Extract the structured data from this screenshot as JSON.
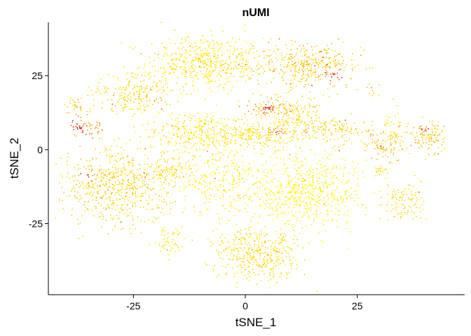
{
  "chart_data": {
    "type": "scatter",
    "title": "nUMI",
    "xlabel": "tSNE_1",
    "ylabel": "tSNE_2",
    "xlim": [
      -44,
      49
    ],
    "ylim": [
      -49,
      43
    ],
    "xticks": [
      -25,
      0,
      25
    ],
    "yticks": [
      -25,
      0,
      25
    ],
    "xtick_labels": [
      "-25",
      "0",
      "25"
    ],
    "ytick_labels": [
      "-25",
      "0",
      "25"
    ],
    "grid": false,
    "legend": "none",
    "color_scale": {
      "low": "#FFFF00",
      "mid": "#FFC800",
      "high": "#E60000"
    },
    "clusters": [
      {
        "x": -9,
        "y": 29.5,
        "sx": 6.5,
        "sy": 4.5,
        "n": 520,
        "base": 0.25,
        "hot": []
      },
      {
        "x": 14,
        "y": 28.5,
        "sx": 6,
        "sy": 4,
        "n": 380,
        "base": 0.45,
        "hot": [
          {
            "x": 20,
            "y": 25,
            "r": 4
          }
        ]
      },
      {
        "x": -25,
        "y": 19,
        "sx": 4.5,
        "sy": 3.5,
        "n": 220,
        "base": 0.35,
        "hot": [
          {
            "x": -20,
            "y": 18,
            "r": 2.5
          }
        ]
      },
      {
        "x": -37.5,
        "y": 14.5,
        "sx": 1.3,
        "sy": 1.2,
        "n": 30,
        "base": 0.45,
        "hot": []
      },
      {
        "x": -35.5,
        "y": 7.5,
        "sx": 2,
        "sy": 1.5,
        "n": 55,
        "base": 0.7,
        "hot": [
          {
            "x": -37,
            "y": 7,
            "r": 1.5
          }
        ]
      },
      {
        "x": -11,
        "y": 6,
        "sx": 6,
        "sy": 3.5,
        "n": 300,
        "base": 0.22,
        "hot": []
      },
      {
        "x": 4,
        "y": 5,
        "sx": 6,
        "sy": 2.5,
        "n": 260,
        "base": 0.3,
        "hot": [
          {
            "x": 7,
            "y": 6,
            "r": 2.5
          }
        ]
      },
      {
        "x": 6,
        "y": 14,
        "sx": 3.5,
        "sy": 1.8,
        "n": 100,
        "base": 0.5,
        "hot": [
          {
            "x": 5,
            "y": 14,
            "r": 2
          }
        ]
      },
      {
        "x": 12,
        "y": 10,
        "sx": 3,
        "sy": 3,
        "n": 140,
        "base": 0.35,
        "hot": [
          {
            "x": 14,
            "y": 6,
            "r": 2
          }
        ]
      },
      {
        "x": 21,
        "y": 7,
        "sx": 3,
        "sy": 2,
        "n": 90,
        "base": 0.4,
        "hot": [
          {
            "x": 22,
            "y": 10,
            "r": 1.5
          }
        ]
      },
      {
        "x": 31,
        "y": 2,
        "sx": 3,
        "sy": 2.5,
        "n": 100,
        "base": 0.5,
        "hot": []
      },
      {
        "x": 41,
        "y": 4.5,
        "sx": 2,
        "sy": 2.5,
        "n": 110,
        "base": 0.45,
        "hot": [
          {
            "x": 40,
            "y": 7,
            "r": 1.5
          }
        ]
      },
      {
        "x": -28,
        "y": -12,
        "sx": 6.5,
        "sy": 6.5,
        "n": 620,
        "base": 0.4,
        "hot": [
          {
            "x": -36,
            "y": -9,
            "r": 3
          }
        ]
      },
      {
        "x": -17,
        "y": -7,
        "sx": 2,
        "sy": 2,
        "n": 70,
        "base": 0.3,
        "hot": []
      },
      {
        "x": -6,
        "y": -10,
        "sx": 5,
        "sy": 6,
        "n": 260,
        "base": 0.15,
        "hot": []
      },
      {
        "x": 13,
        "y": -14,
        "sx": 6.5,
        "sy": 6,
        "n": 620,
        "base": 0.08,
        "hot": []
      },
      {
        "x": 30,
        "y": -7,
        "sx": 1,
        "sy": 0.8,
        "n": 20,
        "base": 0.3,
        "hot": []
      },
      {
        "x": 35.5,
        "y": -17,
        "sx": 2.5,
        "sy": 3.5,
        "n": 110,
        "base": 0.35,
        "hot": []
      },
      {
        "x": -17,
        "y": -31,
        "sx": 1.6,
        "sy": 3,
        "n": 55,
        "base": 0.2,
        "hot": []
      },
      {
        "x": 2.5,
        "y": -35,
        "sx": 5,
        "sy": 4.5,
        "n": 400,
        "base": 0.35,
        "hot": []
      },
      {
        "x": 33,
        "y": 9,
        "sx": 1.2,
        "sy": 4,
        "n": 30,
        "base": 0.3,
        "hot": []
      },
      {
        "x": 28,
        "y": 20,
        "sx": 1,
        "sy": 1,
        "n": 10,
        "base": 0.4,
        "hot": []
      }
    ]
  }
}
